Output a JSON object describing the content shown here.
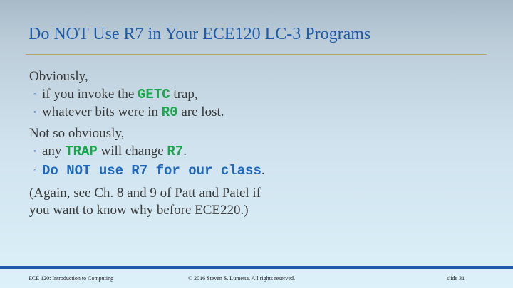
{
  "title": "Do NOT Use R7 in Your ECE120 LC-3 Programs",
  "bullet_glyph": "◦",
  "block1": {
    "intro": "Obviously,",
    "b1": {
      "pre": "if you invoke the ",
      "kw": "GETC",
      "post": " trap,"
    },
    "b2": {
      "pre": "whatever bits were in ",
      "kw": "R0",
      "post": " are lost."
    }
  },
  "block2": {
    "intro": "Not so obviously,",
    "b1": {
      "pre": "any ",
      "kw1": "TRAP",
      "mid": " will change ",
      "kw2": "R7",
      "post": "."
    },
    "b2": {
      "em": "Do NOT use R7 for our class",
      "post": "."
    }
  },
  "closing": {
    "line1": "(Again, see Ch. 8 and 9 of Patt and Patel if",
    "line2": "you want to know why before ECE220.)"
  },
  "footer": {
    "course": "ECE 120: Introduction to Computing",
    "copyright": "© 2016 Steven S. Lumetta.  All rights reserved.",
    "slide": "slide 31"
  },
  "colors": {
    "title": "#1f5ba8",
    "keyword_green": "#1aa64a",
    "emphasis_blue": "#1f68b8",
    "body_text": "#3a3a3a",
    "rule": "#b6a564",
    "footer_bar": "#1f5ba8"
  }
}
